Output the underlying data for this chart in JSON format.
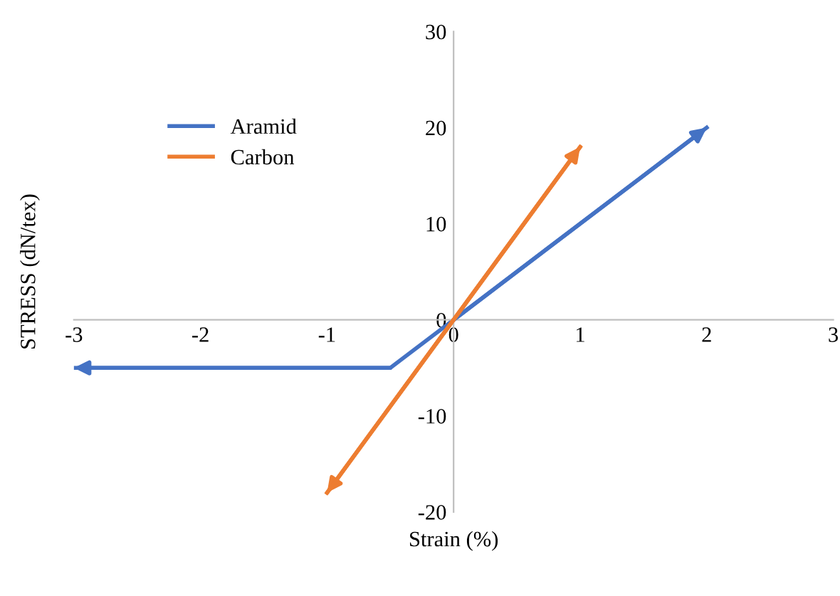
{
  "chart_data": {
    "type": "line",
    "xlabel": "Strain (%)",
    "ylabel": "STRESS (dN/tex)",
    "xlim": [
      -3,
      3
    ],
    "ylim": [
      -20,
      30
    ],
    "xticks": [
      -3,
      -2,
      -1,
      0,
      1,
      2,
      3
    ],
    "yticks": [
      -20,
      -10,
      0,
      10,
      20,
      30
    ],
    "grid": false,
    "legend": "top left",
    "marker": "none",
    "line_style": "solid",
    "series": [
      {
        "name": "Aramid",
        "color": "#4472c4",
        "x": [
          -3,
          -0.5,
          0,
          2
        ],
        "values": [
          -5,
          -5,
          0,
          20
        ]
      },
      {
        "name": "Carbon",
        "color": "#ed7d31",
        "x": [
          -1,
          1
        ],
        "values": [
          -18,
          18
        ]
      }
    ]
  }
}
